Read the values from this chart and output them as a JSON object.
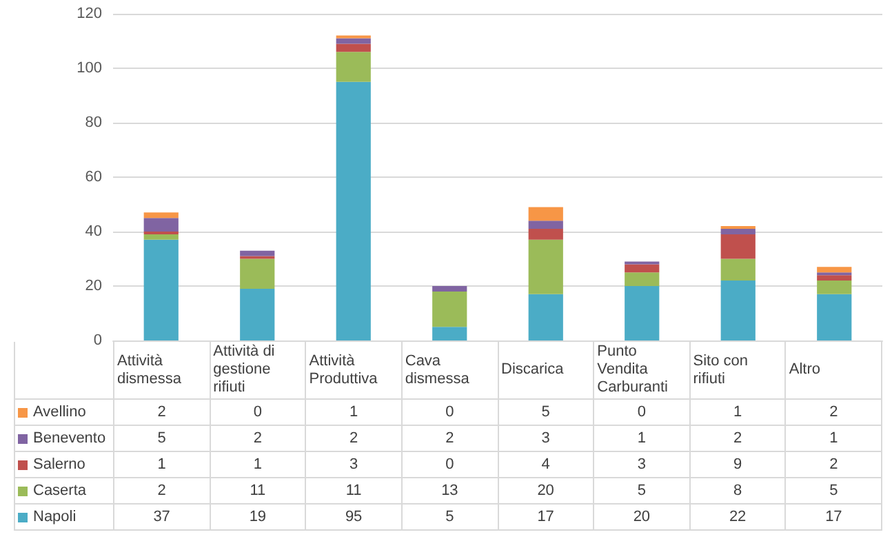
{
  "chart_data": {
    "type": "bar",
    "stacked": true,
    "categories": [
      "Attività dismessa",
      "Attività di gestione rifiuti",
      "Attività Produttiva",
      "Cava dismessa",
      "Discarica",
      "Punto Vendita Carburanti",
      "Sito con rifiuti",
      "Altro"
    ],
    "series": [
      {
        "name": "Napoli",
        "color": "#4bacc6",
        "values": [
          37,
          19,
          95,
          5,
          17,
          20,
          22,
          17
        ]
      },
      {
        "name": "Caserta",
        "color": "#9bbb59",
        "values": [
          2,
          11,
          11,
          13,
          20,
          5,
          8,
          5
        ]
      },
      {
        "name": "Salerno",
        "color": "#c0504d",
        "values": [
          1,
          1,
          3,
          0,
          4,
          3,
          9,
          2
        ]
      },
      {
        "name": "Benevento",
        "color": "#8064a2",
        "values": [
          5,
          2,
          2,
          2,
          3,
          1,
          2,
          1
        ]
      },
      {
        "name": "Avellino",
        "color": "#f79646",
        "values": [
          2,
          0,
          1,
          0,
          5,
          0,
          1,
          2
        ]
      }
    ],
    "ylim": [
      0,
      120
    ],
    "yticks": [
      0,
      20,
      40,
      60,
      80,
      100,
      120
    ],
    "grid": "y",
    "legend": "bottom",
    "data_labels": true
  }
}
